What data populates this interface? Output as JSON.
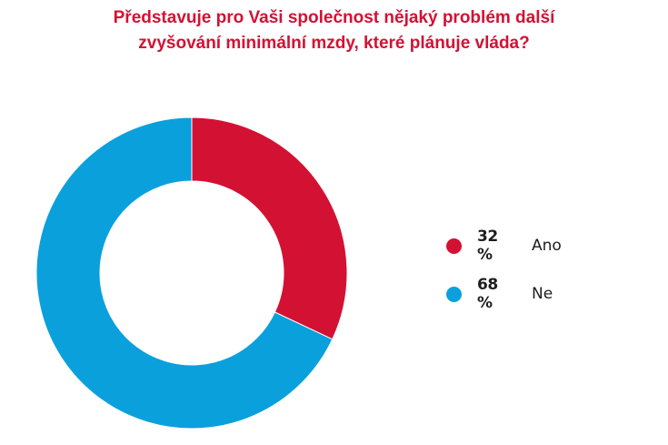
{
  "chart_data": {
    "type": "donut",
    "title_lines": [
      "Představuje pro Vaši společnost nějaký problém další",
      "zvyšování minimální mzdy, které plánuje vláda?"
    ],
    "categories": [
      "Ano",
      "Ne"
    ],
    "values": [
      32,
      68
    ],
    "value_labels": [
      "32 %",
      "68 %"
    ],
    "colors": [
      "#d31133",
      "#0aa0dc"
    ],
    "legend_position": "right"
  }
}
